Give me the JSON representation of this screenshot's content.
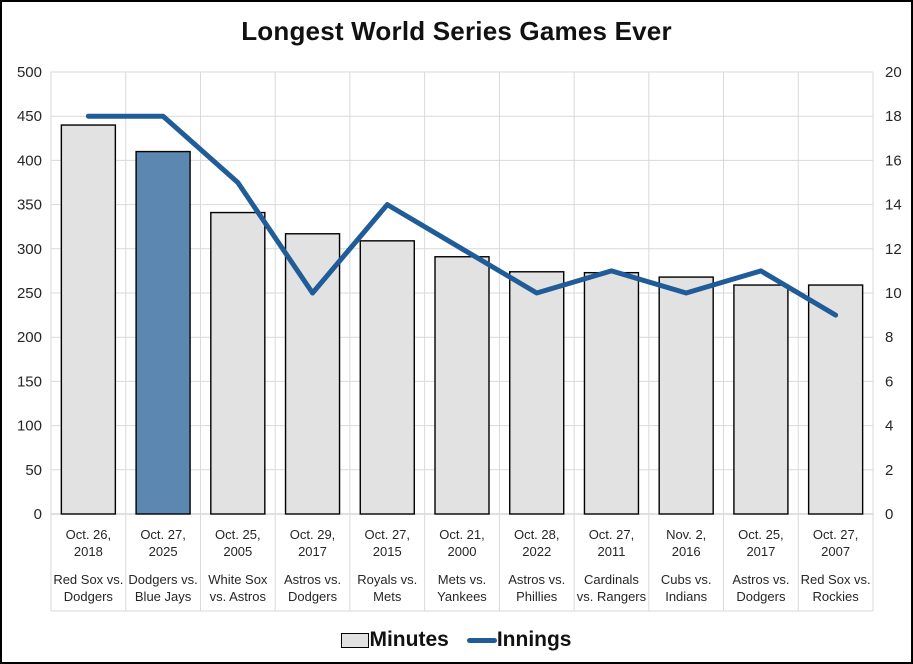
{
  "title": "Longest World Series Games Ever",
  "legend": {
    "minutes_label": "Minutes",
    "innings_label": "Innings"
  },
  "colors": {
    "bar_fill": "#e2e2e2",
    "bar_border": "#000000",
    "highlight_fill": "#5b87b1",
    "line": "#205c98",
    "gridline": "#d9d9d9",
    "axis_line": "#c0c0c0",
    "text": "#262626"
  },
  "chart_data": {
    "type": "bar",
    "combo": "bar+line",
    "title": "Longest World Series Games Ever",
    "grid": true,
    "legend_position": "bottom",
    "categories": [
      {
        "date_lines": [
          "Oct. 26,",
          "2018"
        ],
        "matchup_lines": [
          "Red Sox vs.",
          "Dodgers"
        ]
      },
      {
        "date_lines": [
          "Oct. 27,",
          "2025"
        ],
        "matchup_lines": [
          "Dodgers vs.",
          "Blue Jays"
        ]
      },
      {
        "date_lines": [
          "Oct. 25,",
          "2005"
        ],
        "matchup_lines": [
          "White Sox",
          "vs. Astros"
        ]
      },
      {
        "date_lines": [
          "Oct. 29,",
          "2017"
        ],
        "matchup_lines": [
          "Astros vs.",
          "Dodgers"
        ]
      },
      {
        "date_lines": [
          "Oct. 27,",
          "2015"
        ],
        "matchup_lines": [
          "Royals vs.",
          "Mets"
        ]
      },
      {
        "date_lines": [
          "Oct. 21,",
          "2000"
        ],
        "matchup_lines": [
          "Mets vs.",
          "Yankees"
        ]
      },
      {
        "date_lines": [
          "Oct. 28,",
          "2022"
        ],
        "matchup_lines": [
          "Astros vs.",
          "Phillies"
        ]
      },
      {
        "date_lines": [
          "Oct. 27,",
          "2011"
        ],
        "matchup_lines": [
          "Cardinals",
          "vs. Rangers"
        ]
      },
      {
        "date_lines": [
          "Nov. 2,",
          "2016"
        ],
        "matchup_lines": [
          "Cubs vs.",
          "Indians"
        ]
      },
      {
        "date_lines": [
          "Oct. 25,",
          "2017"
        ],
        "matchup_lines": [
          "Astros vs.",
          "Dodgers"
        ]
      },
      {
        "date_lines": [
          "Oct. 27,",
          "2007"
        ],
        "matchup_lines": [
          "Red Sox vs.",
          "Rockies"
        ]
      }
    ],
    "series": [
      {
        "name": "Minutes",
        "type": "bar",
        "values": [
          440,
          410,
          341,
          317,
          309,
          291,
          274,
          273,
          268,
          259,
          259
        ],
        "highlighted_index": 1
      },
      {
        "name": "Innings",
        "type": "line",
        "values": [
          18,
          18,
          15,
          10,
          14,
          12,
          10,
          11,
          10,
          11,
          9
        ]
      }
    ],
    "left_axis": {
      "min": 0,
      "max": 500,
      "tick_step": 50,
      "ticks": [
        0,
        50,
        100,
        150,
        200,
        250,
        300,
        350,
        400,
        450,
        500
      ]
    },
    "right_axis": {
      "min": 0,
      "max": 20,
      "tick_step": 2,
      "ticks": [
        0,
        2,
        4,
        6,
        8,
        10,
        12,
        14,
        16,
        18,
        20
      ]
    }
  }
}
